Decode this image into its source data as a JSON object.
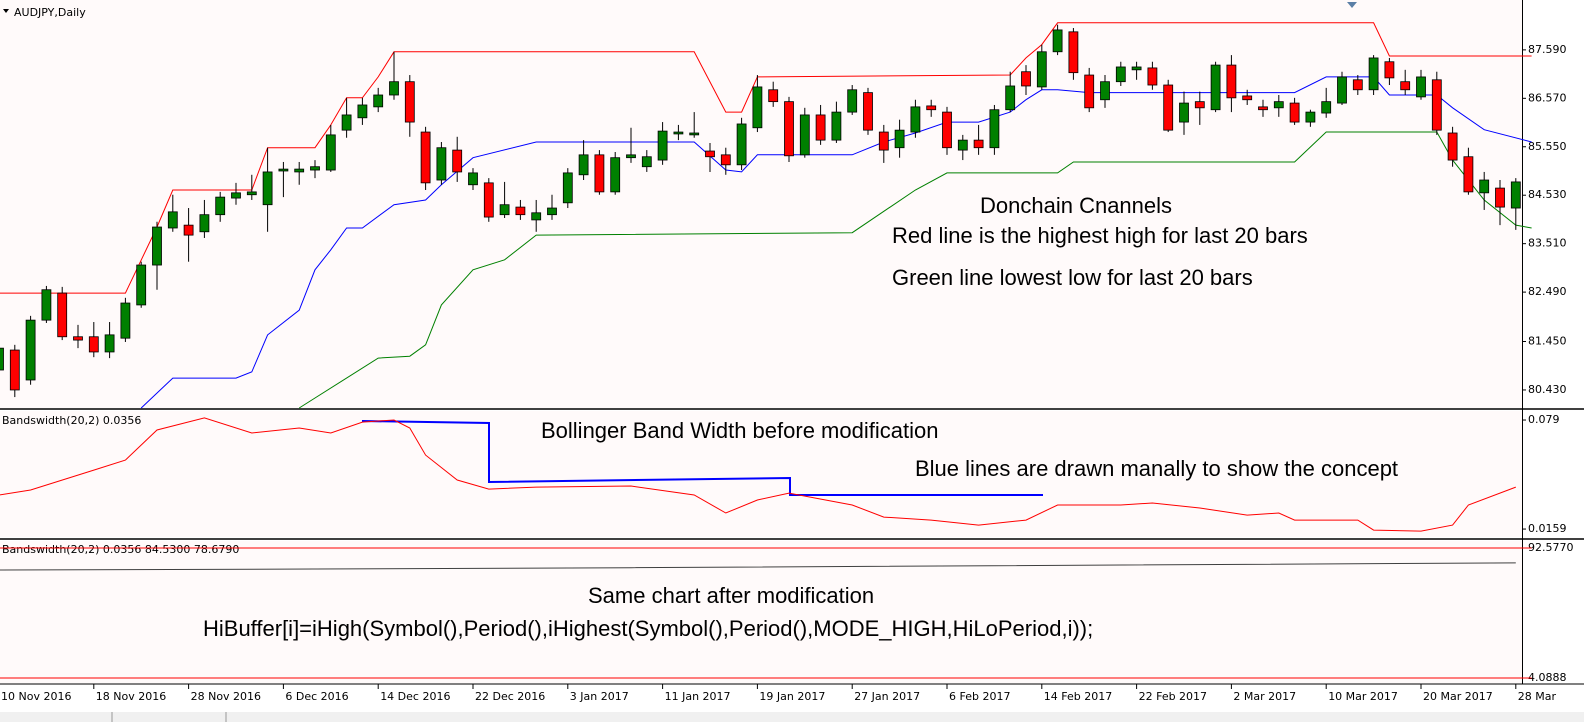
{
  "chart_data": [
    {
      "type": "candlestick",
      "title": "AUDJPY,Daily",
      "categories": [
        "10 Nov 2016",
        null,
        null,
        null,
        null,
        null,
        "18 Nov 2016",
        null,
        null,
        null,
        null,
        null,
        "28 Nov 2016",
        null,
        null,
        null,
        null,
        null,
        "6 Dec 2016",
        null,
        null,
        null,
        null,
        null,
        "14 Dec 2016",
        null,
        null,
        null,
        null,
        null,
        "22 Dec 2016",
        null,
        null,
        null,
        null,
        null,
        "3 Jan 2017",
        null,
        null,
        null,
        null,
        null,
        "11 Jan 2017",
        null,
        null,
        null,
        null,
        null,
        "19 Jan 2017",
        null,
        null,
        null,
        null,
        null,
        "27 Jan 2017",
        null,
        null,
        null,
        null,
        null,
        "6 Feb 2017",
        null,
        null,
        null,
        null,
        null,
        "14 Feb 2017",
        null,
        null,
        null,
        null,
        null,
        "22 Feb 2017",
        null,
        null,
        null,
        null,
        null,
        "2 Mar 2017",
        null,
        null,
        null,
        null,
        null,
        "10 Mar 2017",
        null,
        null,
        null,
        null,
        null,
        "20 Mar 2017",
        null,
        null,
        null,
        null,
        null,
        "28 Mar"
      ],
      "open": [
        80.85,
        81.27,
        80.64,
        81.9,
        82.47,
        81.55,
        81.55,
        81.23,
        81.52,
        82.22,
        83.06,
        83.84,
        83.9,
        83.76,
        84.12,
        84.47,
        84.54,
        84.33,
        85.04,
        85.02,
        85.06,
        85.06,
        85.9,
        86.16,
        86.39,
        86.64,
        86.92,
        85.86,
        84.85,
        85.48,
        84.75,
        84.79,
        84.12,
        84.28,
        84.01,
        84.12,
        84.37,
        84.96,
        85.38,
        84.6,
        85.32,
        85.13,
        85.27,
        85.82,
        85.8,
        85.46,
        85.38,
        85.17,
        85.95,
        86.75,
        86.5,
        85.38,
        86.22,
        85.69,
        86.28,
        86.69,
        85.86,
        85.53,
        85.86,
        86.41,
        86.28,
        85.48,
        85.69,
        85.53,
        86.33,
        87.13,
        86.81,
        87.55,
        87.97,
        87.06,
        86.54,
        86.92,
        87.17,
        87.21,
        86.85,
        86.07,
        86.5,
        86.33,
        87.27,
        86.62,
        86.39,
        86.37,
        86.47,
        86.07,
        86.26,
        86.47,
        86.96,
        86.75,
        87.34,
        86.92,
        86.6,
        86.96,
        85.84,
        85.34,
        84.58,
        84.68,
        84.26
      ],
      "high": [
        81.38,
        81.38,
        81.99,
        82.62,
        82.6,
        81.8,
        81.86,
        81.86,
        82.37,
        83.13,
        83.97,
        84.54,
        84.26,
        84.43,
        84.6,
        84.79,
        84.96,
        85.53,
        85.23,
        85.23,
        85.27,
        86.01,
        86.58,
        86.58,
        86.79,
        87.55,
        87.06,
        85.97,
        85.65,
        85.76,
        85.1,
        84.89,
        84.81,
        84.43,
        84.43,
        84.54,
        85.1,
        85.69,
        85.48,
        85.44,
        85.95,
        85.48,
        86.07,
        86.01,
        86.28,
        85.63,
        85.53,
        86.16,
        87.06,
        86.92,
        86.6,
        86.37,
        86.43,
        86.5,
        86.85,
        86.79,
        86.01,
        86.12,
        86.54,
        86.54,
        86.39,
        85.8,
        86.01,
        86.43,
        87.13,
        87.27,
        87.7,
        88.12,
        88.05,
        87.21,
        87.06,
        87.34,
        87.34,
        87.34,
        86.96,
        86.71,
        86.71,
        87.34,
        87.48,
        86.75,
        86.54,
        86.64,
        86.58,
        86.33,
        86.79,
        87.13,
        87.06,
        87.48,
        87.42,
        87.17,
        87.17,
        87.13,
        85.97,
        85.53,
        85.02,
        84.85,
        84.89
      ],
      "low": [
        80.81,
        80.28,
        80.54,
        81.84,
        81.48,
        81.31,
        81.12,
        81.1,
        81.44,
        82.16,
        82.54,
        83.76,
        83.13,
        83.63,
        83.97,
        84.33,
        84.43,
        83.76,
        84.49,
        84.75,
        84.89,
        85.02,
        85.74,
        86.01,
        86.28,
        86.54,
        85.76,
        84.64,
        84.75,
        84.81,
        84.64,
        83.97,
        84.05,
        84.01,
        83.76,
        84.01,
        84.26,
        84.85,
        84.54,
        84.54,
        85.21,
        85.02,
        85.17,
        85.69,
        85.74,
        85.02,
        84.96,
        85.06,
        85.86,
        86.39,
        85.23,
        85.32,
        85.59,
        85.63,
        86.22,
        85.8,
        85.21,
        85.32,
        85.74,
        86.18,
        85.38,
        85.27,
        85.38,
        85.38,
        86.28,
        86.64,
        86.75,
        87.48,
        86.96,
        86.28,
        86.37,
        86.83,
        86.96,
        86.75,
        85.86,
        85.8,
        86.01,
        86.28,
        86.28,
        86.43,
        86.18,
        86.18,
        86.01,
        85.97,
        86.16,
        86.43,
        86.64,
        86.64,
        86.85,
        86.64,
        86.54,
        85.8,
        85.13,
        84.54,
        84.22,
        83.9,
        83.8
      ],
      "close": [
        81.31,
        80.43,
        81.9,
        82.54,
        81.55,
        81.48,
        81.23,
        81.59,
        82.26,
        83.06,
        83.86,
        84.18,
        83.69,
        84.12,
        84.49,
        84.58,
        84.6,
        85.02,
        85.08,
        85.08,
        85.13,
        85.8,
        86.22,
        86.43,
        86.64,
        86.92,
        86.07,
        84.79,
        85.53,
        85.02,
        85.0,
        84.07,
        84.33,
        84.12,
        84.16,
        84.26,
        85.0,
        85.38,
        84.6,
        85.32,
        85.38,
        85.34,
        85.88,
        85.86,
        85.84,
        85.34,
        85.17,
        86.03,
        86.81,
        86.5,
        85.36,
        86.22,
        85.69,
        86.28,
        86.75,
        85.9,
        85.48,
        85.9,
        86.39,
        86.33,
        85.53,
        85.69,
        85.53,
        86.33,
        86.83,
        86.83,
        87.55,
        88.01,
        87.11,
        86.37,
        86.92,
        87.23,
        87.23,
        86.85,
        85.9,
        86.47,
        86.37,
        87.27,
        86.58,
        86.54,
        86.33,
        86.5,
        86.07,
        86.28,
        86.5,
        87.02,
        86.75,
        87.42,
        87.0,
        86.75,
        87.02,
        85.9,
        85.27,
        84.6,
        84.85,
        84.28,
        84.81
      ],
      "up_color": "#008000",
      "down_color": "#ff0000",
      "ylim": [
        80.05,
        88.64
      ],
      "yticks": [
        {
          "value": 87.59,
          "label": "87.590"
        },
        {
          "value": 86.57,
          "label": "86.570"
        },
        {
          "value": 85.55,
          "label": "85.550"
        },
        {
          "value": 84.53,
          "label": "84.530"
        },
        {
          "value": 83.51,
          "label": "83.510"
        },
        {
          "value": 82.49,
          "label": "82.490"
        },
        {
          "value": 81.45,
          "label": "81.450"
        },
        {
          "value": 80.43,
          "label": "80.430"
        }
      ],
      "series": [
        {
          "color": "#ff0000",
          "x": [
            0,
            8,
            10,
            11,
            16,
            17,
            20,
            21,
            22,
            23,
            24,
            25,
            44,
            46,
            47,
            48,
            64,
            65,
            66,
            67,
            87,
            88,
            97
          ],
          "values": [
            82.47,
            82.47,
            83.86,
            84.64,
            84.64,
            85.53,
            85.53,
            86.01,
            86.58,
            86.58,
            87.02,
            87.55,
            87.55,
            86.28,
            86.28,
            87.02,
            87.06,
            87.42,
            87.7,
            88.16,
            88.16,
            87.46,
            87.46
          ]
        },
        {
          "color": "#0000ff",
          "x": [
            9,
            11,
            15,
            16,
            17,
            19,
            20,
            21,
            22,
            23,
            25,
            27,
            28,
            30,
            34,
            44,
            46,
            47,
            48,
            54,
            56,
            58,
            60,
            62,
            64,
            65,
            66,
            67,
            69,
            82,
            84,
            87,
            88,
            91,
            92,
            94,
            97
          ],
          "values": [
            80.05,
            80.68,
            80.68,
            80.81,
            81.59,
            82.11,
            82.96,
            83.38,
            83.84,
            83.84,
            84.33,
            84.43,
            84.75,
            85.32,
            85.65,
            85.65,
            85.06,
            85.02,
            85.38,
            85.38,
            85.65,
            85.84,
            86.07,
            86.07,
            86.28,
            86.54,
            86.75,
            86.75,
            86.69,
            86.69,
            87.02,
            87.02,
            86.64,
            86.64,
            86.37,
            85.91,
            85.65
          ]
        },
        {
          "color": "#008000",
          "x": [
            19,
            20,
            24,
            26,
            27,
            28,
            30,
            32,
            34,
            54,
            58,
            60,
            67,
            68,
            82,
            84,
            91,
            92,
            94,
            96,
            97
          ],
          "values": [
            80.05,
            80.26,
            81.1,
            81.14,
            81.38,
            82.22,
            82.96,
            83.17,
            83.69,
            83.74,
            84.64,
            85.0,
            85.0,
            85.23,
            85.23,
            85.86,
            85.86,
            85.27,
            84.43,
            83.9,
            83.84
          ]
        }
      ],
      "annotations": [
        "Donchain Cnannels",
        "Red line is the highest high for last 20 bars",
        "Green line lowest low for last 20 bars"
      ]
    },
    {
      "type": "line",
      "title": "Bandswidth(20,2) 0.0356",
      "color": "#ff0000",
      "x": [
        0,
        2,
        6,
        8,
        10,
        13,
        16,
        19,
        21,
        23,
        25,
        26,
        27,
        29,
        31,
        34,
        40,
        44,
        46,
        48,
        50,
        54,
        56,
        59,
        62,
        65,
        67,
        71,
        73,
        76,
        79,
        81,
        82,
        86,
        87,
        90,
        92,
        93,
        96
      ],
      "values": [
        0.0356,
        0.0385,
        0.05,
        0.0558,
        0.0732,
        0.0802,
        0.0715,
        0.0744,
        0.0715,
        0.0778,
        0.079,
        0.0744,
        0.0587,
        0.0443,
        0.039,
        0.0402,
        0.0408,
        0.0356,
        0.0252,
        0.0327,
        0.0367,
        0.0298,
        0.0228,
        0.0211,
        0.0182,
        0.0211,
        0.0298,
        0.0298,
        0.031,
        0.0281,
        0.024,
        0.0252,
        0.0211,
        0.0211,
        0.0153,
        0.0147,
        0.0182,
        0.0298,
        0.0402
      ],
      "ylim": [
        0.0113,
        0.0848
      ],
      "yticks": [
        0.079,
        0.0159
      ],
      "annotations": [
        "Bollinger Band Width before modification",
        "Blue lines are drawn manally to show the concept"
      ]
    },
    {
      "type": "line",
      "title": "Bandswidth(20,2) 0.0356 84.5300 78.6790",
      "series": [
        {
          "color": "#ff0000",
          "x": [
            0,
            97
          ],
          "values": [
            92.577,
            92.577
          ]
        },
        {
          "color": "#404040",
          "x": [
            0,
            20,
            40,
            96
          ],
          "values": [
            77.6,
            78.3,
            79.2,
            82.4
          ]
        },
        {
          "color": "#ff0000",
          "x": [
            0,
            97
          ],
          "values": [
            4.0888,
            4.0888
          ]
        }
      ],
      "ylim": [
        1.37,
        98.02
      ],
      "yticks": [
        {
          "value": 92.577,
          "label": "92.5770"
        },
        {
          "value": 4.0888,
          "label": "4.0888"
        }
      ],
      "annotations": [
        "Same chart after modification",
        "HiBuffer[i]=iHigh(Symbol(),Period(),iHighest(Symbol(),Period(),MODE_HIGH,HiLoPeriod,i));"
      ]
    }
  ]
}
